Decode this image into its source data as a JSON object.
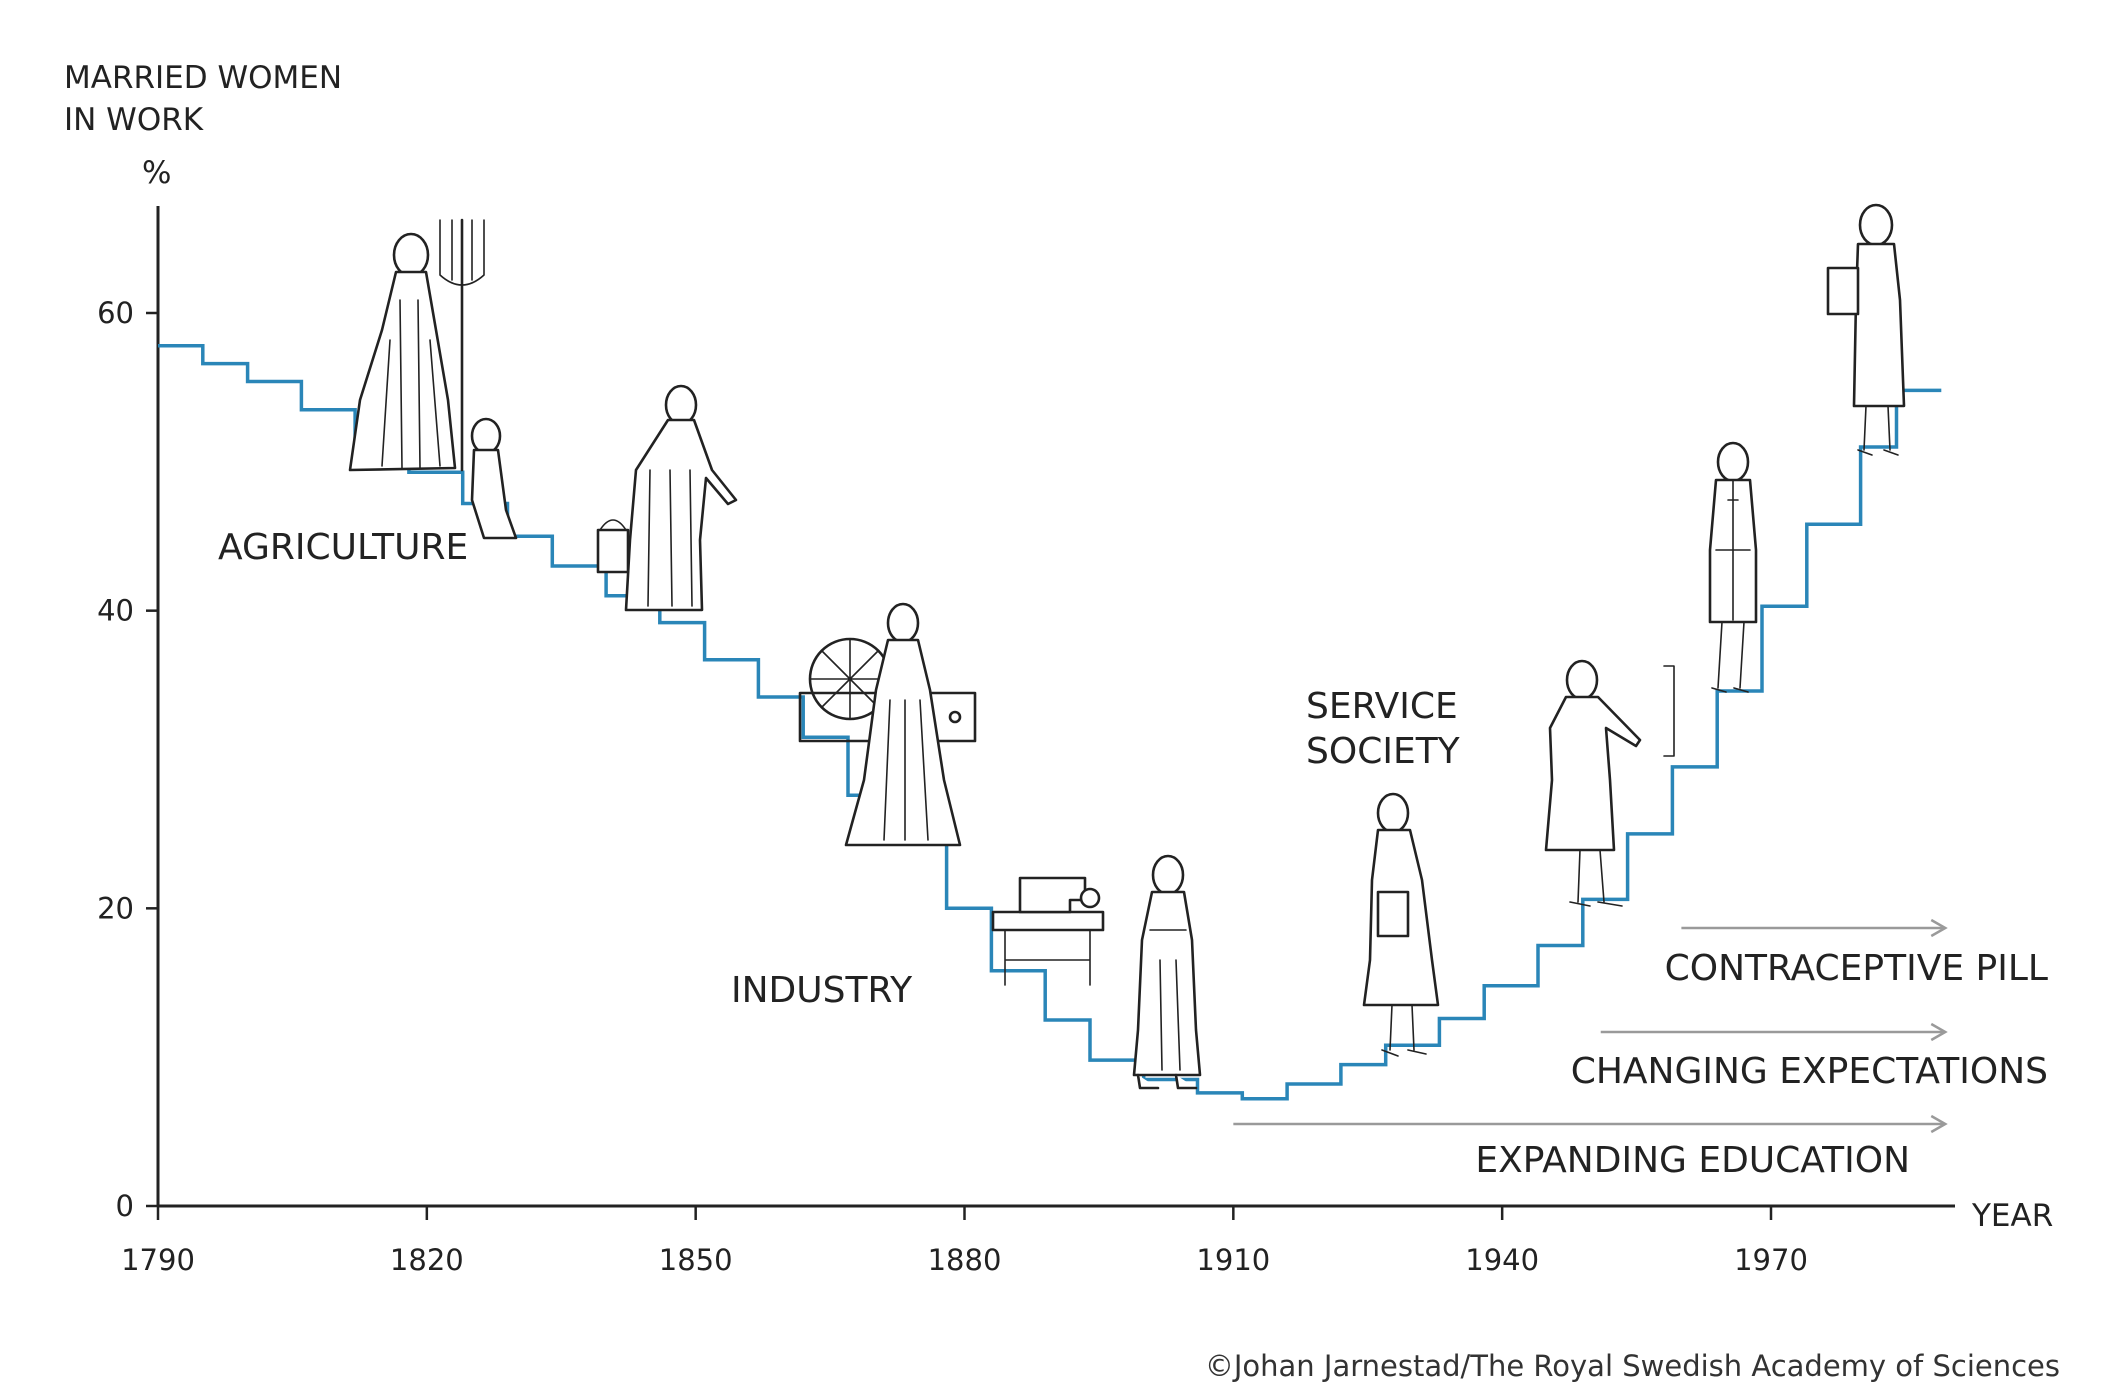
{
  "chart_data": {
    "type": "line",
    "step": true,
    "title": "",
    "ylabel_lines": [
      "MARRIED WOMEN",
      "IN WORK"
    ],
    "yunit": "%",
    "xlabel": "YEAR",
    "xlim": [
      1790,
      1990
    ],
    "ylim": [
      0,
      70
    ],
    "y_ticks": [
      0,
      20,
      40,
      60
    ],
    "x_ticks": [
      1790,
      1820,
      1850,
      1880,
      1910,
      1940,
      1970
    ],
    "series": [
      {
        "color": "#2a86b8",
        "points": [
          [
            1790,
            57.8
          ],
          [
            1795,
            56.6
          ],
          [
            1800,
            55.4
          ],
          [
            1806,
            53.5
          ],
          [
            1812,
            51.2
          ],
          [
            1818,
            49.3
          ],
          [
            1824,
            47.2
          ],
          [
            1829,
            45.0
          ],
          [
            1834,
            43.0
          ],
          [
            1840,
            41.0
          ],
          [
            1846,
            39.2
          ],
          [
            1851,
            36.7
          ],
          [
            1857,
            34.2
          ],
          [
            1862,
            31.5
          ],
          [
            1867,
            27.6
          ],
          [
            1872,
            24.8
          ],
          [
            1878,
            20.0
          ],
          [
            1883,
            15.8
          ],
          [
            1889,
            12.5
          ],
          [
            1894,
            9.8
          ],
          [
            1900,
            8.5
          ],
          [
            1906,
            7.6
          ],
          [
            1911,
            7.2
          ],
          [
            1916,
            8.2
          ],
          [
            1922,
            9.5
          ],
          [
            1927,
            10.8
          ],
          [
            1933,
            12.6
          ],
          [
            1938,
            14.8
          ],
          [
            1944,
            17.5
          ],
          [
            1949,
            20.6
          ],
          [
            1954,
            25.0
          ],
          [
            1959,
            29.5
          ],
          [
            1964,
            34.6
          ],
          [
            1969,
            40.3
          ],
          [
            1974,
            45.8
          ],
          [
            1980,
            51.0
          ],
          [
            1984,
            54.8
          ],
          [
            1989,
            54.8
          ]
        ]
      }
    ],
    "annotations": {
      "agriculture": "AGRICULTURE",
      "industry": "INDUSTRY",
      "service_line1": "SERVICE",
      "service_line2": "SOCIETY"
    },
    "arrows": [
      {
        "label": "CONTRACEPTIVE PILL",
        "from_year": 1960,
        "to_year": 1989
      },
      {
        "label": "CHANGING EXPECTATIONS",
        "from_year": 1951,
        "to_year": 1989
      },
      {
        "label": "EXPANDING EDUCATION",
        "from_year": 1910,
        "to_year": 1989
      }
    ],
    "arrow_color": "#9a9a9a",
    "credit": "©Johan Jarnestad/The Royal Swedish Academy of Sciences"
  }
}
